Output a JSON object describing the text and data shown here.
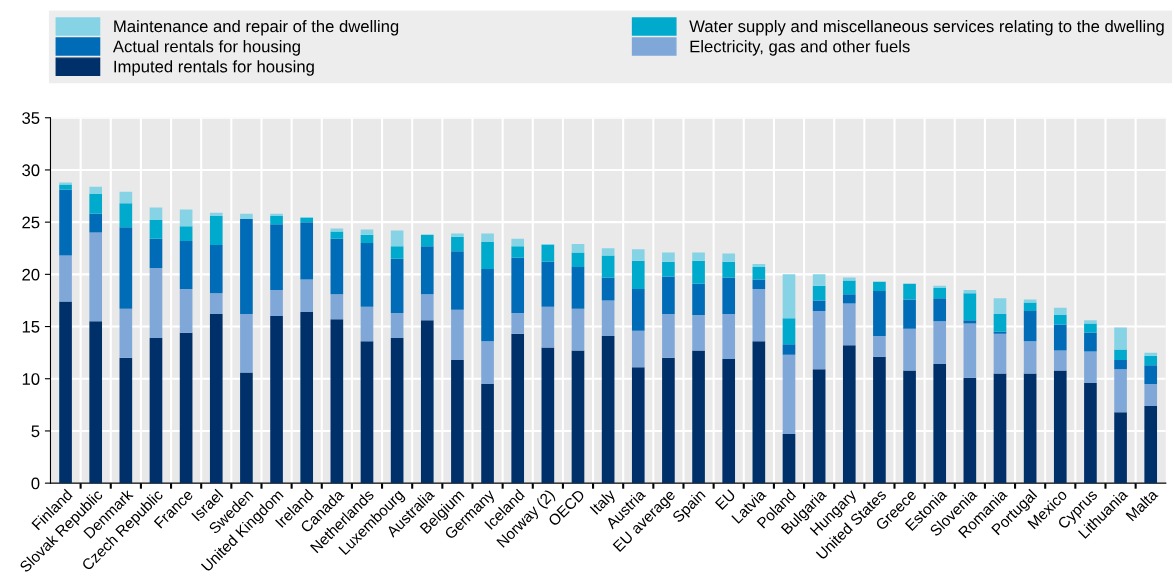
{
  "chart_data": {
    "type": "bar",
    "stacked": true,
    "categories": [
      "Finland",
      "Slovak Republic",
      "Denmark",
      "Czech Republic",
      "France",
      "Israel",
      "Sweden",
      "United Kingdom",
      "Ireland",
      "Canada",
      "Netherlands",
      "Luxembourg",
      "Australia",
      "Belgium",
      "Germany",
      "Iceland",
      "Norway (2)",
      "OECD",
      "Italy",
      "Austria",
      "EU average",
      "Spain",
      "EU",
      "Latvia",
      "Poland",
      "Bulgaria",
      "Hungary",
      "United States",
      "Greece",
      "Estonia",
      "Slovenia",
      "Romania",
      "Portugal",
      "Mexico",
      "Cyprus",
      "Lithuania",
      "Malta"
    ],
    "series": [
      {
        "name": "Imputed rentals for housing",
        "color": "#003069",
        "values": [
          17.4,
          15.5,
          12.0,
          13.9,
          14.4,
          16.2,
          10.6,
          16.0,
          16.4,
          15.7,
          13.6,
          13.9,
          15.6,
          11.8,
          9.5,
          14.3,
          13.0,
          12.7,
          14.1,
          11.1,
          12.0,
          12.7,
          11.9,
          13.6,
          4.7,
          10.9,
          13.2,
          12.1,
          10.8,
          11.4,
          10.1,
          10.5,
          10.5,
          10.8,
          9.6,
          6.8,
          7.4
        ]
      },
      {
        "name": "Electricity, gas and other fuels",
        "color": "#7fa8d9",
        "values": [
          4.4,
          8.5,
          4.7,
          6.7,
          4.2,
          2.0,
          5.6,
          2.5,
          3.1,
          2.4,
          3.3,
          2.4,
          2.5,
          4.8,
          4.1,
          2.0,
          3.9,
          4.0,
          3.4,
          3.5,
          4.2,
          3.4,
          4.3,
          5.0,
          7.6,
          5.6,
          4.0,
          2.0,
          4.0,
          4.1,
          5.2,
          3.8,
          3.1,
          1.9,
          3.0,
          4.1,
          2.1
        ]
      },
      {
        "name": "Actual rentals for housing",
        "color": "#006bb6",
        "values": [
          6.3,
          1.8,
          7.8,
          2.8,
          4.6,
          4.6,
          9.1,
          6.3,
          5.5,
          5.3,
          6.1,
          5.2,
          4.6,
          5.6,
          6.9,
          5.3,
          4.3,
          4.0,
          2.2,
          4.0,
          3.6,
          3.0,
          3.5,
          0.9,
          1.0,
          1.0,
          0.9,
          4.3,
          2.8,
          2.2,
          0.3,
          0.2,
          2.9,
          2.5,
          1.8,
          0.9,
          1.8
        ]
      },
      {
        "name": "Water supply and miscellaneous services relating to the dwelling",
        "color": "#00aacc",
        "values": [
          0.5,
          1.9,
          2.3,
          1.8,
          1.4,
          2.8,
          0,
          0.8,
          0.4,
          0.7,
          0.8,
          1.2,
          1.1,
          1.4,
          2.6,
          1.1,
          1.6,
          1.4,
          2.1,
          2.7,
          1.4,
          2.2,
          1.5,
          1.2,
          2.5,
          1.4,
          1.3,
          0.9,
          1.5,
          1.0,
          2.6,
          1.7,
          0.8,
          0.9,
          0.9,
          1.0,
          0.9
        ]
      },
      {
        "name": "Maintenance and repair of the dwelling",
        "color": "#86d3e6",
        "values": [
          0.2,
          0.7,
          1.1,
          1.2,
          1.6,
          0.3,
          0.5,
          0.2,
          0.1,
          0.3,
          0.5,
          1.5,
          0,
          0.3,
          0.8,
          0.7,
          0.1,
          0.8,
          0.7,
          1.1,
          0.9,
          0.8,
          0.8,
          0.3,
          4.2,
          1.1,
          0.3,
          0,
          0,
          0.2,
          0.3,
          1.5,
          0.3,
          0.7,
          0.3,
          2.1,
          0.3
        ]
      }
    ],
    "ylim": [
      0,
      35
    ],
    "yticks": [
      0,
      5,
      10,
      15,
      20,
      25,
      30,
      35
    ],
    "grid": true,
    "legend": "top"
  }
}
